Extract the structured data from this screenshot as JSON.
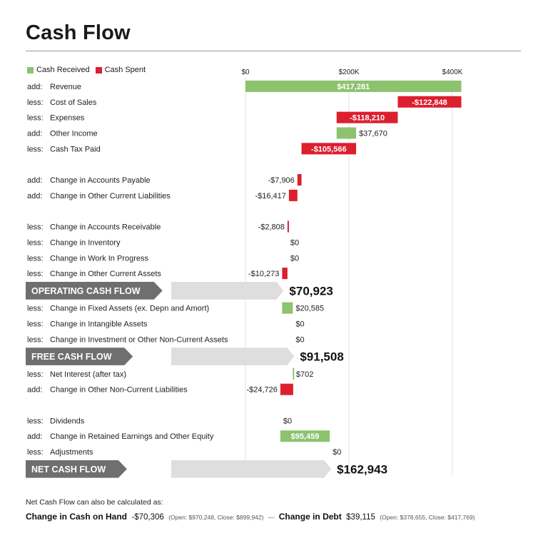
{
  "title": "Cash Flow",
  "legend": [
    {
      "label": "Cash Received",
      "color": "#8dc26f"
    },
    {
      "label": "Cash Spent",
      "color": "#dc1f2e"
    }
  ],
  "colors": {
    "received": "#8dc26f",
    "spent": "#dc1f2e",
    "band_dark": "#6f6f6f",
    "band_light": "#dedede"
  },
  "footer": {
    "intro": "Net Cash Flow can also be calculated as:",
    "cash_label": "Change in Cash on Hand",
    "cash_value": "-$70,306",
    "cash_detail": "(Open: $970,248, Close: $899,942)",
    "separator": "—",
    "debt_label": "Change in Debt",
    "debt_value": "$39,115",
    "debt_detail": "(Open: $378,655, Close: $417,769)"
  },
  "chart_data": {
    "type": "waterfall",
    "axis": {
      "ticks": [
        0,
        200000,
        400000
      ],
      "tick_labels": [
        "$0",
        "$200K",
        "$400K"
      ]
    },
    "rows": [
      {
        "kind": "item",
        "prefix": "add:",
        "label": "Revenue",
        "value": 417281,
        "display": "$417,281",
        "start": 0,
        "label_inside": true
      },
      {
        "kind": "item",
        "prefix": "less:",
        "label": "Cost of Sales",
        "value": -122848,
        "display": "-$122,848",
        "start": 417281,
        "label_inside": true
      },
      {
        "kind": "item",
        "prefix": "less:",
        "label": "Expenses",
        "value": -118210,
        "display": "-$118,210",
        "start": 294433,
        "label_inside": true
      },
      {
        "kind": "item",
        "prefix": "add:",
        "label": "Other Income",
        "value": 37670,
        "display": "$37,670",
        "start": 176223,
        "label_inside": false
      },
      {
        "kind": "item",
        "prefix": "less:",
        "label": "Cash Tax Paid",
        "value": -105566,
        "display": "-$105,566",
        "start": 213893,
        "label_inside": true
      },
      {
        "kind": "gap"
      },
      {
        "kind": "item",
        "prefix": "add:",
        "label": "Change in Accounts Payable",
        "value": -7906,
        "display": "-$7,906",
        "start": 108327,
        "label_inside": false
      },
      {
        "kind": "item",
        "prefix": "add:",
        "label": "Change in Other Current Liabilities",
        "value": -16417,
        "display": "-$16,417",
        "start": 100421,
        "label_inside": false
      },
      {
        "kind": "gap"
      },
      {
        "kind": "item",
        "prefix": "less:",
        "label": "Change in Accounts Receivable",
        "value": -2808,
        "display": "-$2,808",
        "start": 84004,
        "label_inside": false
      },
      {
        "kind": "item",
        "prefix": "less:",
        "label": "Change in Inventory",
        "value": 0,
        "display": "$0",
        "start": 81196,
        "label_inside": false
      },
      {
        "kind": "item",
        "prefix": "less:",
        "label": "Change in Work In Progress",
        "value": 0,
        "display": "$0",
        "start": 81196,
        "label_inside": false
      },
      {
        "kind": "item",
        "prefix": "less:",
        "label": "Change in Other Current Assets",
        "value": -10273,
        "display": "-$10,273",
        "start": 81196,
        "label_inside": false
      },
      {
        "kind": "subtotal",
        "label": "OPERATING CASH FLOW",
        "value": 70923,
        "display": "$70,923"
      },
      {
        "kind": "item",
        "prefix": "less:",
        "label": "Change in Fixed Assets (ex. Depn and Amort)",
        "value": 20585,
        "display": "$20,585",
        "start": 70923,
        "label_inside": false
      },
      {
        "kind": "item",
        "prefix": "less:",
        "label": "Change in Intangible Assets",
        "value": 0,
        "display": "$0",
        "start": 91508,
        "label_inside": false
      },
      {
        "kind": "item",
        "prefix": "less:",
        "label": "Change in Investment or Other Non-Current Assets",
        "value": 0,
        "display": "$0",
        "start": 91508,
        "label_inside": false
      },
      {
        "kind": "subtotal",
        "label": "FREE CASH FLOW",
        "value": 91508,
        "display": "$91,508"
      },
      {
        "kind": "item",
        "prefix": "less:",
        "label": "Net Interest (after tax)",
        "value": 702,
        "display": "$702",
        "start": 91508,
        "label_inside": false
      },
      {
        "kind": "item",
        "prefix": "add:",
        "label": "Change in Other Non-Current Liabilities",
        "value": -24726,
        "display": "-$24,726",
        "start": 92210,
        "label_inside": false
      },
      {
        "kind": "gap"
      },
      {
        "kind": "item",
        "prefix": "less:",
        "label": "Dividends",
        "value": 0,
        "display": "$0",
        "start": 67484,
        "label_inside": false
      },
      {
        "kind": "item",
        "prefix": "add:",
        "label": "Change in Retained Earnings and Other Equity",
        "value": 95459,
        "display": "$95,459",
        "start": 67484,
        "label_inside": true
      },
      {
        "kind": "item",
        "prefix": "less:",
        "label": "Adjustments",
        "value": 0,
        "display": "$0",
        "start": 162943,
        "label_inside": false
      },
      {
        "kind": "subtotal",
        "label": "NET CASH FLOW",
        "value": 162943,
        "display": "$162,943"
      }
    ]
  }
}
